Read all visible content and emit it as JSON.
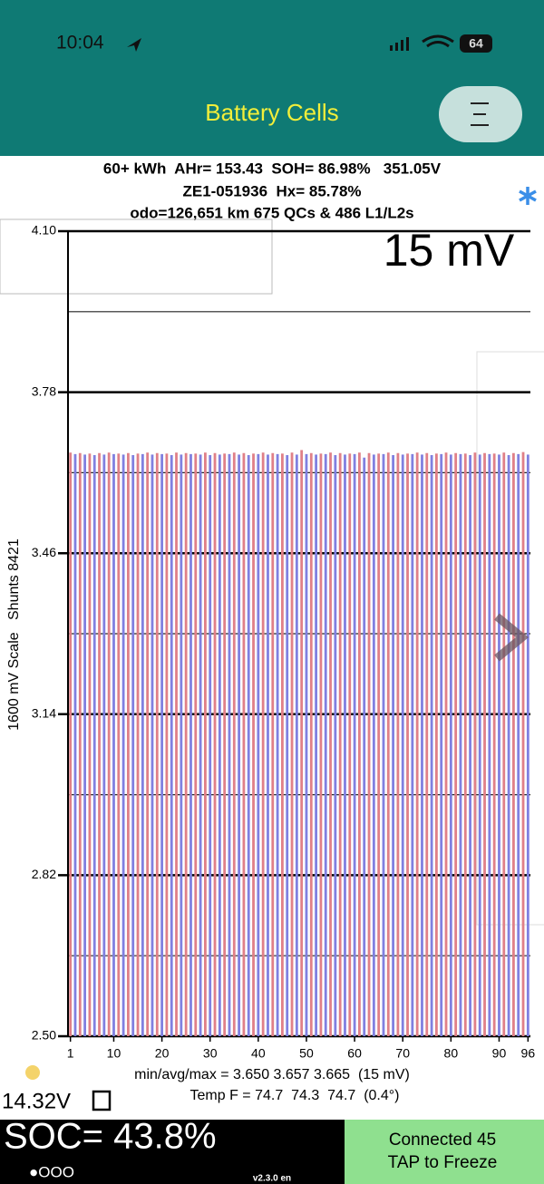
{
  "status_bar": {
    "time": "10:04",
    "battery": "64"
  },
  "header": {
    "title": "Battery Cells"
  },
  "summary": {
    "lines": [
      "60+ kWh  AHr= 153.43  SOH= 86.98%   351.05V",
      "ZE1-051936  Hx= 85.78%",
      "odo=126,651 km 675 QCs & 486 L1/L2s"
    ]
  },
  "chart_data": {
    "type": "bar",
    "y_label": "1600 mV Scale   Shunts 8421",
    "annotation": "15 mV",
    "x": [
      1,
      2,
      3,
      4,
      5,
      6,
      7,
      8,
      9,
      10,
      11,
      12,
      13,
      14,
      15,
      16,
      17,
      18,
      19,
      20,
      21,
      22,
      23,
      24,
      25,
      26,
      27,
      28,
      29,
      30,
      31,
      32,
      33,
      34,
      35,
      36,
      37,
      38,
      39,
      40,
      41,
      42,
      43,
      44,
      45,
      46,
      47,
      48,
      49,
      50,
      51,
      52,
      53,
      54,
      55,
      56,
      57,
      58,
      59,
      60,
      61,
      62,
      63,
      64,
      65,
      66,
      67,
      68,
      69,
      70,
      71,
      72,
      73,
      74,
      75,
      76,
      77,
      78,
      79,
      80,
      81,
      82,
      83,
      84,
      85,
      86,
      87,
      88,
      89,
      90,
      91,
      92,
      93,
      94,
      95,
      96
    ],
    "values": [
      3.66,
      3.657,
      3.659,
      3.656,
      3.658,
      3.655,
      3.659,
      3.656,
      3.66,
      3.657,
      3.658,
      3.656,
      3.659,
      3.655,
      3.658,
      3.657,
      3.66,
      3.656,
      3.659,
      3.657,
      3.658,
      3.655,
      3.66,
      3.656,
      3.659,
      3.657,
      3.658,
      3.656,
      3.66,
      3.655,
      3.659,
      3.656,
      3.658,
      3.657,
      3.66,
      3.656,
      3.659,
      3.655,
      3.658,
      3.657,
      3.66,
      3.656,
      3.659,
      3.657,
      3.658,
      3.655,
      3.66,
      3.656,
      3.665,
      3.657,
      3.659,
      3.656,
      3.658,
      3.657,
      3.66,
      3.655,
      3.659,
      3.656,
      3.658,
      3.657,
      3.66,
      3.65,
      3.659,
      3.656,
      3.658,
      3.657,
      3.66,
      3.655,
      3.659,
      3.656,
      3.658,
      3.657,
      3.66,
      3.656,
      3.659,
      3.655,
      3.658,
      3.657,
      3.66,
      3.656,
      3.659,
      3.657,
      3.658,
      3.655,
      3.66,
      3.656,
      3.659,
      3.657,
      3.658,
      3.656,
      3.66,
      3.655,
      3.659,
      3.657,
      3.661,
      3.656
    ],
    "colors": [
      "#e08088",
      "#8080e0"
    ],
    "xlim": [
      0.5,
      96.5
    ],
    "xticks": [
      1,
      10,
      20,
      30,
      40,
      50,
      60,
      70,
      80,
      90,
      96
    ],
    "ylim": [
      2.5,
      4.1
    ],
    "yticks": [
      {
        "value": 4.1,
        "label": "4.10"
      },
      3.78,
      3.46,
      3.14,
      2.82,
      {
        "value": 2.5,
        "label": "2.50"
      }
    ],
    "minor_yticks": [
      3.94,
      3.62,
      3.3,
      2.98,
      2.66
    ],
    "grid": true
  },
  "stats": {
    "min_avg_max": "min/avg/max = 3.650 3.657 3.665  (15 mV)",
    "temp": "Temp F = 74.7  74.3  74.7  (0.4°)"
  },
  "footer": {
    "aux_voltage": "14.32V",
    "soc": "SOC= 43.8%",
    "page_dots": "●OOO",
    "version": "v2.3.0 en",
    "status": [
      "Connected 45",
      "TAP to Freeze"
    ]
  }
}
